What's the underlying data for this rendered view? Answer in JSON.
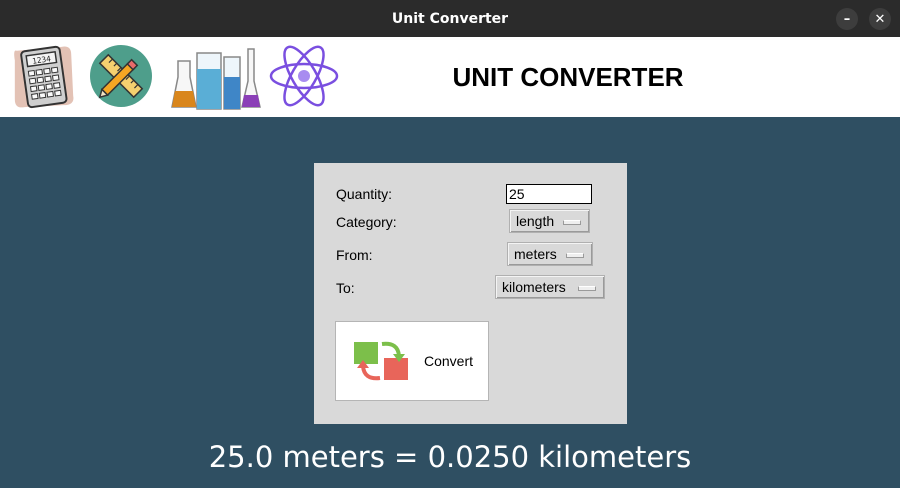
{
  "window": {
    "title": "Unit Converter",
    "minimize_glyph": "–",
    "close_glyph": "✕"
  },
  "header": {
    "title": "UNIT CONVERTER",
    "icons": [
      "calculator-icon",
      "ruler-pencil-icon",
      "lab-flasks-icon",
      "atom-icon"
    ],
    "calculator_display": "1234"
  },
  "form": {
    "quantity_label": "Quantity:",
    "quantity_value": "25",
    "category_label": "Category:",
    "category_value": "length",
    "from_label": "From:",
    "from_value": "meters",
    "to_label": "To:",
    "to_value": "kilometers",
    "convert_label": "Convert"
  },
  "result": {
    "text": "25.0 meters = 0.0250 kilometers"
  },
  "colors": {
    "background": "#2f4f62",
    "titlebar": "#2b2b2b",
    "panel": "#d9d9d9",
    "convert_green": "#7cbf4a",
    "convert_red": "#e8655a"
  }
}
